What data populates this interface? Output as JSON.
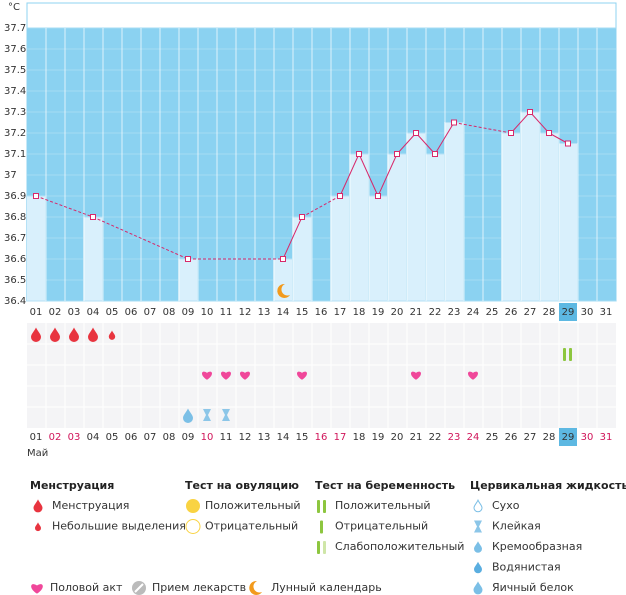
{
  "chart_data": {
    "type": "bar",
    "title": "°C",
    "categories": [
      "01",
      "02",
      "03",
      "04",
      "05",
      "06",
      "07",
      "08",
      "09",
      "10",
      "11",
      "12",
      "13",
      "14",
      "15",
      "16",
      "17",
      "18",
      "19",
      "20",
      "21",
      "22",
      "23",
      "24",
      "25",
      "26",
      "27",
      "28",
      "29",
      "30",
      "31"
    ],
    "values": [
      36.9,
      null,
      null,
      36.8,
      null,
      null,
      null,
      null,
      36.6,
      null,
      null,
      null,
      null,
      36.6,
      36.8,
      null,
      36.9,
      37.1,
      36.9,
      37.1,
      37.2,
      37.1,
      37.25,
      null,
      null,
      37.2,
      37.3,
      37.2,
      37.15,
      null,
      null
    ],
    "ylim": [
      36.4,
      37.8
    ],
    "yticks": [
      36.4,
      36.5,
      36.6,
      36.7,
      36.8,
      36.9,
      37,
      37.1,
      37.2,
      37.3,
      37.4,
      37.5,
      37.6,
      37.7
    ],
    "grid": true,
    "color": "#d9f0fc",
    "line_color": "#d8286a",
    "month": "Май",
    "today": 29,
    "holidays": [
      2,
      3,
      10,
      16,
      17,
      23,
      24,
      30,
      31
    ],
    "lunar_days": [
      14
    ],
    "menstruation_days": [
      1,
      2,
      3,
      4
    ],
    "spotting_days": [
      5
    ],
    "pregnancy_positive_days": [
      29
    ],
    "intercourse_days": [
      10,
      11,
      12,
      15,
      21,
      24
    ],
    "egg_white_days": [
      9
    ],
    "sticky_days": [
      10,
      11
    ]
  },
  "legend": {
    "menstruation": {
      "title": "Менструация",
      "items": [
        "Менструация",
        "Небольшие выделения"
      ]
    },
    "ovulation_test": {
      "title": "Тест на овуляцию",
      "items": [
        "Положительный",
        "Отрицательный"
      ]
    },
    "pregnancy_test": {
      "title": "Тест на беременность",
      "items": [
        "Положительный",
        "Отрицательный",
        "Слабоположительный"
      ]
    },
    "cervical_fluid": {
      "title": "Цервикальная жидкость",
      "items": [
        "Сухо",
        "Клейкая",
        "Кремообразная",
        "Водянистая",
        "Яичный белок"
      ]
    },
    "other": [
      "Половой акт",
      "Прием лекарств",
      "Лунный календарь"
    ]
  }
}
